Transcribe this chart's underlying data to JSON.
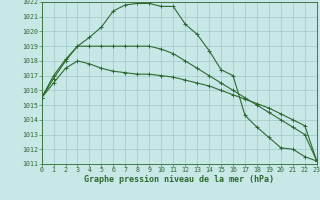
{
  "series1": {
    "x": [
      0,
      1,
      2,
      3,
      4,
      5,
      6,
      7,
      8,
      9,
      10,
      11,
      12,
      13,
      14,
      15,
      16,
      17,
      18,
      19,
      20,
      21,
      22,
      23
    ],
    "y": [
      1015.5,
      1017.0,
      1018.1,
      1019.0,
      1019.6,
      1020.3,
      1021.4,
      1021.8,
      1021.9,
      1021.9,
      1021.7,
      1021.7,
      1020.5,
      1019.8,
      1018.7,
      1017.4,
      1017.0,
      1014.3,
      1013.5,
      1012.8,
      1012.1,
      1012.0,
      1011.5,
      1011.2
    ]
  },
  "series2": {
    "x": [
      0,
      1,
      2,
      3,
      4,
      5,
      6,
      7,
      8,
      9,
      10,
      11,
      12,
      13,
      14,
      15,
      16,
      17,
      18,
      19,
      20,
      21,
      22,
      23
    ],
    "y": [
      1015.5,
      1016.8,
      1018.0,
      1019.0,
      1019.0,
      1019.0,
      1019.0,
      1019.0,
      1019.0,
      1019.0,
      1018.8,
      1018.5,
      1018.0,
      1017.5,
      1017.0,
      1016.5,
      1016.0,
      1015.5,
      1015.0,
      1014.5,
      1014.0,
      1013.5,
      1013.0,
      1011.2
    ]
  },
  "series3": {
    "x": [
      0,
      1,
      2,
      3,
      4,
      5,
      6,
      7,
      8,
      9,
      10,
      11,
      12,
      13,
      14,
      15,
      16,
      17,
      18,
      19,
      20,
      21,
      22,
      23
    ],
    "y": [
      1015.5,
      1016.5,
      1017.5,
      1018.0,
      1017.8,
      1017.5,
      1017.3,
      1017.2,
      1017.1,
      1017.1,
      1017.0,
      1016.9,
      1016.7,
      1016.5,
      1016.3,
      1016.0,
      1015.7,
      1015.4,
      1015.1,
      1014.8,
      1014.4,
      1014.0,
      1013.6,
      1011.2
    ]
  },
  "bg_color": "#c8e8e8",
  "grid_color": "#a0c8c8",
  "line_color": "#2d6a2d",
  "ylim": [
    1011,
    1022
  ],
  "xlim": [
    0,
    23
  ],
  "yticks": [
    1011,
    1012,
    1013,
    1014,
    1015,
    1016,
    1017,
    1018,
    1019,
    1020,
    1021,
    1022
  ],
  "xticks": [
    0,
    1,
    2,
    3,
    4,
    5,
    6,
    7,
    8,
    9,
    10,
    11,
    12,
    13,
    14,
    15,
    16,
    17,
    18,
    19,
    20,
    21,
    22,
    23
  ],
  "xlabel": "Graphe pression niveau de la mer (hPa)",
  "xlabel_fontsize": 6.0,
  "tick_fontsize": 4.8,
  "marker_size": 2.5,
  "line_width": 0.8
}
